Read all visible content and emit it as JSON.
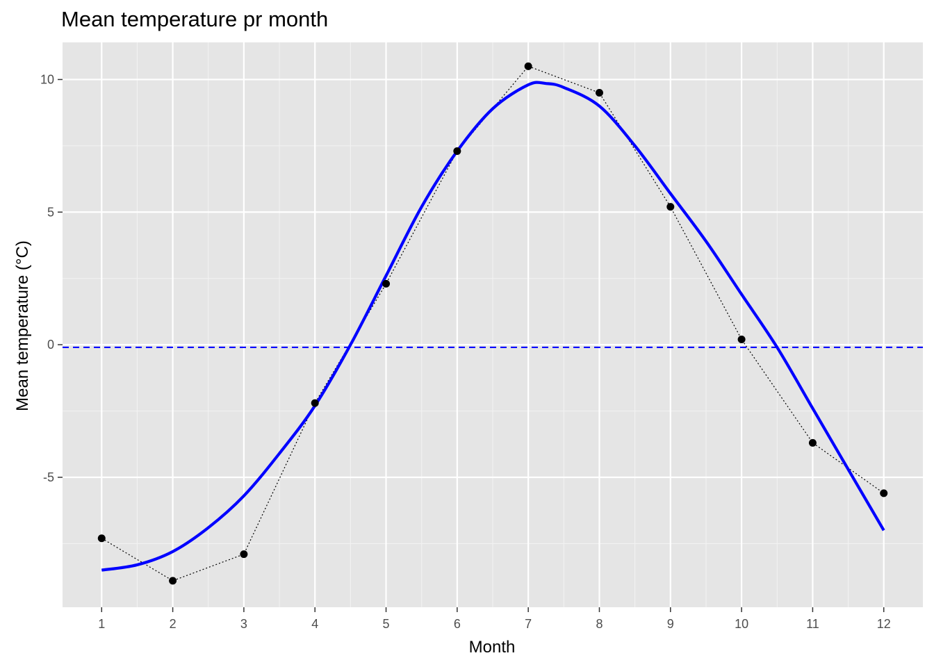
{
  "chart_data": {
    "type": "line",
    "title": "Mean temperature pr month",
    "xlabel": "Month",
    "ylabel": "Mean temperature (°C)",
    "x": [
      1,
      2,
      3,
      4,
      5,
      6,
      7,
      8,
      9,
      10,
      11,
      12
    ],
    "xlim": [
      0.45,
      12.55
    ],
    "ylim": [
      -9.9,
      11.4
    ],
    "x_ticks": [
      1,
      2,
      3,
      4,
      5,
      6,
      7,
      8,
      9,
      10,
      11,
      12
    ],
    "y_ticks": [
      -5,
      0,
      5,
      10
    ],
    "y_tick_labels": [
      "-5",
      "0",
      "5",
      "10"
    ],
    "grid": true,
    "series": [
      {
        "kind": "points-dotted-line",
        "values": [
          -7.3,
          -8.9,
          -7.9,
          -2.2,
          2.3,
          7.3,
          10.5,
          9.5,
          5.2,
          0.2,
          -3.7,
          -5.6
        ],
        "color": "#000000"
      },
      {
        "kind": "smooth-line",
        "x": [
          1,
          1.5,
          2,
          2.5,
          3,
          3.5,
          4,
          4.5,
          5,
          5.5,
          6,
          6.5,
          7,
          7.25,
          7.5,
          8,
          8.5,
          9,
          9.5,
          10,
          10.5,
          11,
          11.5,
          12
        ],
        "values": [
          -8.5,
          -8.3,
          -7.8,
          -6.9,
          -5.7,
          -4.1,
          -2.3,
          0.0,
          2.6,
          5.2,
          7.3,
          8.9,
          9.8,
          9.85,
          9.7,
          9.0,
          7.5,
          5.7,
          3.9,
          1.9,
          -0.1,
          -2.4,
          -4.7,
          -7.0
        ],
        "color": "#0000ff"
      }
    ],
    "reference_lines": [
      {
        "y": -0.1,
        "style": "dashed",
        "color": "#0000ff"
      }
    ],
    "colors": {
      "panel_background": "#e5e5e5",
      "grid_major": "#ffffff",
      "grid_minor": "#f2f2f2",
      "points": "#000000",
      "smooth": "#0000ff",
      "reference": "#0000ff"
    }
  }
}
